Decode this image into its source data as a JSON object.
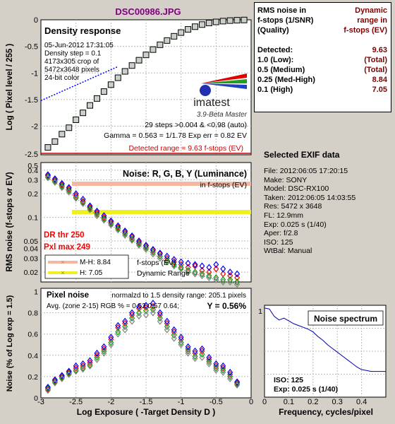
{
  "title": "DSC00986.JPG",
  "density": {
    "heading": "Density response",
    "info": [
      "05-Jun-2012 17:31:05",
      "Density step = 0.1",
      "4173x305 crop of",
      "5472x3648 pixels",
      "24-bit color"
    ],
    "logo": "imatest",
    "version": "3.9-Beta  Master",
    "steps_line": "29 steps >0.004 & <0.98 (auto)",
    "gamma_line": "Gamma = 0.563 = 1/1.78  Exp err = 0.82 EV",
    "detected_range": "Detected range = 9.63 f-stops (EV)",
    "ylabel": "Log ( Pixel level / 255 )",
    "yticks": [
      "0",
      "-0.5",
      "-1",
      "-1.5",
      "-2",
      "-2.5"
    ]
  },
  "noise": {
    "heading": "Noise: R, G, B, Y (Luminance)",
    "units": "in f-stops (EV)",
    "dr_thr": "DR thr 250",
    "pxl_max": "Pxl max 249",
    "ylabel": "RMS noise (f-stops or EV)",
    "yticks": [
      "0.5",
      "0.4",
      "0.3",
      "0.2",
      "0.1",
      "0.05",
      "0.04",
      "0.03",
      "0.02"
    ],
    "legend": {
      "mh": "M-H: 8.84",
      "h": "H:     7.05",
      "line1": "f-stops (EV)",
      "line2": "Dynamic Range"
    }
  },
  "pixel": {
    "heading": "Pixel noise",
    "normalized": "normalzd to 1.5 density range: 205.1 pixels",
    "avg": "Avg. (zone 2-15) RGB % = 0.62  0.57  0.64;",
    "y": "Y = 0.56%",
    "ylabel": "Noise (% of Log exp = 1.5)",
    "yticks": [
      "1",
      "0.8",
      "0.6",
      "0.4",
      "0.2",
      "0"
    ]
  },
  "xaxis": {
    "label": "Log Exposure ( -Target Density D )",
    "ticks": [
      "-3",
      "-2.5",
      "-2",
      "-1.5",
      "-1",
      "-0.5",
      "0"
    ]
  },
  "spectrum": {
    "heading": "Noise spectrum",
    "iso": "ISO:    125",
    "exp": "Exp:   0.025 s   (1/40)",
    "xlabel": "Frequency, cycles/pixel",
    "xticks": [
      "0",
      "0.1",
      "0.2",
      "0.3",
      "0.4"
    ],
    "ytick": "1"
  },
  "rms_table": {
    "head_left": [
      "RMS noise in",
      "f-stops (1/SNR)",
      "(Quality)"
    ],
    "head_right": [
      "Dynamic",
      "range in",
      "f-stops (EV)"
    ],
    "rows": [
      {
        "label": "Detected:",
        "value": "9.63"
      },
      {
        "label": "1.0   (Low):",
        "value": "(Total)"
      },
      {
        "label": "0.5   (Medium)",
        "value": "(Total)"
      },
      {
        "label": "0.25 (Med-High)",
        "value": "8.84"
      },
      {
        "label": "0.1   (High)",
        "value": "7.05"
      }
    ]
  },
  "exif": {
    "heading": "Selected EXIF data",
    "lines": [
      "File:  2012:06:05 17:20:15",
      "Make:  SONY",
      "Model: DSC-RX100",
      "Taken:  2012:06:05 14:03:55",
      "Res:    5472 x 3648",
      "FL:  12.9mm",
      "Exp:  0.025 s  (1/40)",
      "Aper:  f/2.8",
      "ISO:  125",
      "WtBal: Manual"
    ]
  },
  "colors": {
    "panel": "#d4d0c8",
    "red": "#ff0000",
    "green": "#00a000",
    "blue": "#0000ff",
    "gray": "#808080",
    "dr_red": "#cc0000",
    "band_pink": "#f4b8a0",
    "band_yellow": "#f0f020"
  },
  "chart_data": [
    {
      "type": "line",
      "panel": "Density response",
      "x": [
        -2.9,
        -2.8,
        -2.7,
        -2.6,
        -2.5,
        -2.4,
        -2.3,
        -2.2,
        -2.1,
        -2.0,
        -1.9,
        -1.8,
        -1.7,
        -1.6,
        -1.5,
        -1.4,
        -1.3,
        -1.2,
        -1.1,
        -1.0,
        -0.9,
        -0.8,
        -0.7,
        -0.6,
        -0.5,
        -0.4,
        -0.3,
        -0.2,
        -0.1
      ],
      "y": [
        -2.4,
        -2.29,
        -2.15,
        -2.03,
        -1.88,
        -1.75,
        -1.61,
        -1.48,
        -1.35,
        -1.22,
        -1.09,
        -0.97,
        -0.86,
        -0.76,
        -0.66,
        -0.56,
        -0.47,
        -0.39,
        -0.31,
        -0.24,
        -0.18,
        -0.13,
        -0.09,
        -0.06,
        -0.04,
        -0.025,
        -0.015,
        -0.008,
        -0.004
      ],
      "fit_line": {
        "x": [
          -3.0,
          -1.9
        ],
        "y": [
          -1.52,
          -0.88
        ]
      },
      "xlim": [
        -3,
        0
      ],
      "ylim": [
        -2.5,
        0
      ]
    },
    {
      "type": "scatter",
      "panel": "Noise",
      "yscale": "log",
      "x": [
        -2.9,
        -2.8,
        -2.7,
        -2.6,
        -2.5,
        -2.4,
        -2.3,
        -2.2,
        -2.1,
        -2.0,
        -1.9,
        -1.8,
        -1.7,
        -1.6,
        -1.5,
        -1.4,
        -1.3,
        -1.2,
        -1.1,
        -1.0,
        -0.9,
        -0.8,
        -0.7,
        -0.6,
        -0.5,
        -0.4,
        -0.3,
        -0.2
      ],
      "series": [
        {
          "name": "R",
          "values": [
            0.34,
            0.3,
            0.26,
            0.23,
            0.19,
            0.16,
            0.135,
            0.115,
            0.1,
            0.087,
            0.075,
            0.065,
            0.056,
            0.048,
            0.043,
            0.038,
            0.034,
            0.03,
            0.027,
            0.025,
            0.023,
            0.024,
            0.021,
            0.02,
            0.022,
            0.019,
            0.018,
            0.017
          ]
        },
        {
          "name": "G",
          "values": [
            0.33,
            0.29,
            0.25,
            0.22,
            0.18,
            0.155,
            0.13,
            0.11,
            0.096,
            0.083,
            0.072,
            0.062,
            0.053,
            0.046,
            0.041,
            0.036,
            0.032,
            0.028,
            0.025,
            0.023,
            0.021,
            0.02,
            0.019,
            0.018,
            0.017,
            0.016,
            0.016,
            0.015
          ]
        },
        {
          "name": "B",
          "values": [
            0.35,
            0.31,
            0.27,
            0.24,
            0.2,
            0.17,
            0.14,
            0.12,
            0.105,
            0.09,
            0.078,
            0.067,
            0.058,
            0.05,
            0.044,
            0.039,
            0.035,
            0.032,
            0.029,
            0.027,
            0.026,
            0.025,
            0.024,
            0.023,
            0.025,
            0.022,
            0.02,
            0.019
          ]
        },
        {
          "name": "Y",
          "values": [
            0.32,
            0.28,
            0.24,
            0.21,
            0.175,
            0.15,
            0.125,
            0.105,
            0.092,
            0.08,
            0.069,
            0.059,
            0.051,
            0.044,
            0.039,
            0.034,
            0.03,
            0.027,
            0.024,
            0.022,
            0.02,
            0.019,
            0.018,
            0.017,
            0.016,
            0.015,
            0.015,
            0.014
          ]
        }
      ],
      "bands": [
        0.25,
        0.1
      ],
      "xlim": [
        -3,
        0
      ],
      "ylim": [
        0.015,
        0.5
      ]
    },
    {
      "type": "scatter",
      "panel": "Pixel noise",
      "x": [
        -2.9,
        -2.8,
        -2.7,
        -2.6,
        -2.5,
        -2.4,
        -2.3,
        -2.2,
        -2.1,
        -2.0,
        -1.9,
        -1.8,
        -1.7,
        -1.6,
        -1.5,
        -1.4,
        -1.3,
        -1.2,
        -1.1,
        -1.0,
        -0.9,
        -0.8,
        -0.7,
        -0.6,
        -0.5,
        -0.4,
        -0.3,
        -0.2
      ],
      "series": [
        {
          "name": "R",
          "values": [
            0.08,
            0.16,
            0.2,
            0.24,
            0.28,
            0.3,
            0.33,
            0.4,
            0.46,
            0.55,
            0.66,
            0.7,
            0.78,
            0.84,
            0.85,
            0.86,
            0.78,
            0.7,
            0.62,
            0.55,
            0.46,
            0.42,
            0.44,
            0.36,
            0.3,
            0.28,
            0.22,
            0.14
          ]
        },
        {
          "name": "G",
          "values": [
            0.09,
            0.15,
            0.19,
            0.23,
            0.26,
            0.28,
            0.31,
            0.38,
            0.44,
            0.52,
            0.62,
            0.67,
            0.75,
            0.8,
            0.82,
            0.83,
            0.75,
            0.67,
            0.59,
            0.52,
            0.44,
            0.39,
            0.41,
            0.34,
            0.28,
            0.26,
            0.2,
            0.13
          ]
        },
        {
          "name": "B",
          "values": [
            0.1,
            0.17,
            0.21,
            0.25,
            0.3,
            0.32,
            0.35,
            0.42,
            0.48,
            0.57,
            0.68,
            0.72,
            0.8,
            0.86,
            0.87,
            0.89,
            0.8,
            0.72,
            0.64,
            0.57,
            0.48,
            0.44,
            0.46,
            0.38,
            0.32,
            0.3,
            0.24,
            0.15
          ]
        },
        {
          "name": "Y",
          "values": [
            0.07,
            0.14,
            0.18,
            0.22,
            0.25,
            0.27,
            0.3,
            0.36,
            0.42,
            0.5,
            0.6,
            0.64,
            0.72,
            0.77,
            0.78,
            0.8,
            0.72,
            0.64,
            0.56,
            0.5,
            0.42,
            0.37,
            0.38,
            0.32,
            0.26,
            0.24,
            0.18,
            0.12
          ]
        }
      ],
      "xlim": [
        -3,
        0
      ],
      "ylim": [
        0,
        1
      ]
    },
    {
      "type": "line",
      "panel": "Noise spectrum",
      "x": [
        0,
        0.02,
        0.04,
        0.06,
        0.08,
        0.1,
        0.12,
        0.14,
        0.16,
        0.18,
        0.2,
        0.22,
        0.24,
        0.26,
        0.28,
        0.3,
        0.32,
        0.34,
        0.36,
        0.38,
        0.4,
        0.42,
        0.44,
        0.46,
        0.48,
        0.5
      ],
      "y": [
        0.97,
        0.96,
        0.88,
        0.84,
        0.86,
        0.83,
        0.8,
        0.78,
        0.76,
        0.74,
        0.71,
        0.66,
        0.62,
        0.57,
        0.53,
        0.49,
        0.45,
        0.41,
        0.37,
        0.33,
        0.3,
        0.29,
        0.28,
        0.28,
        0.28,
        0.28
      ],
      "xlim": [
        0,
        0.5
      ],
      "ylim": [
        0,
        1
      ]
    }
  ]
}
